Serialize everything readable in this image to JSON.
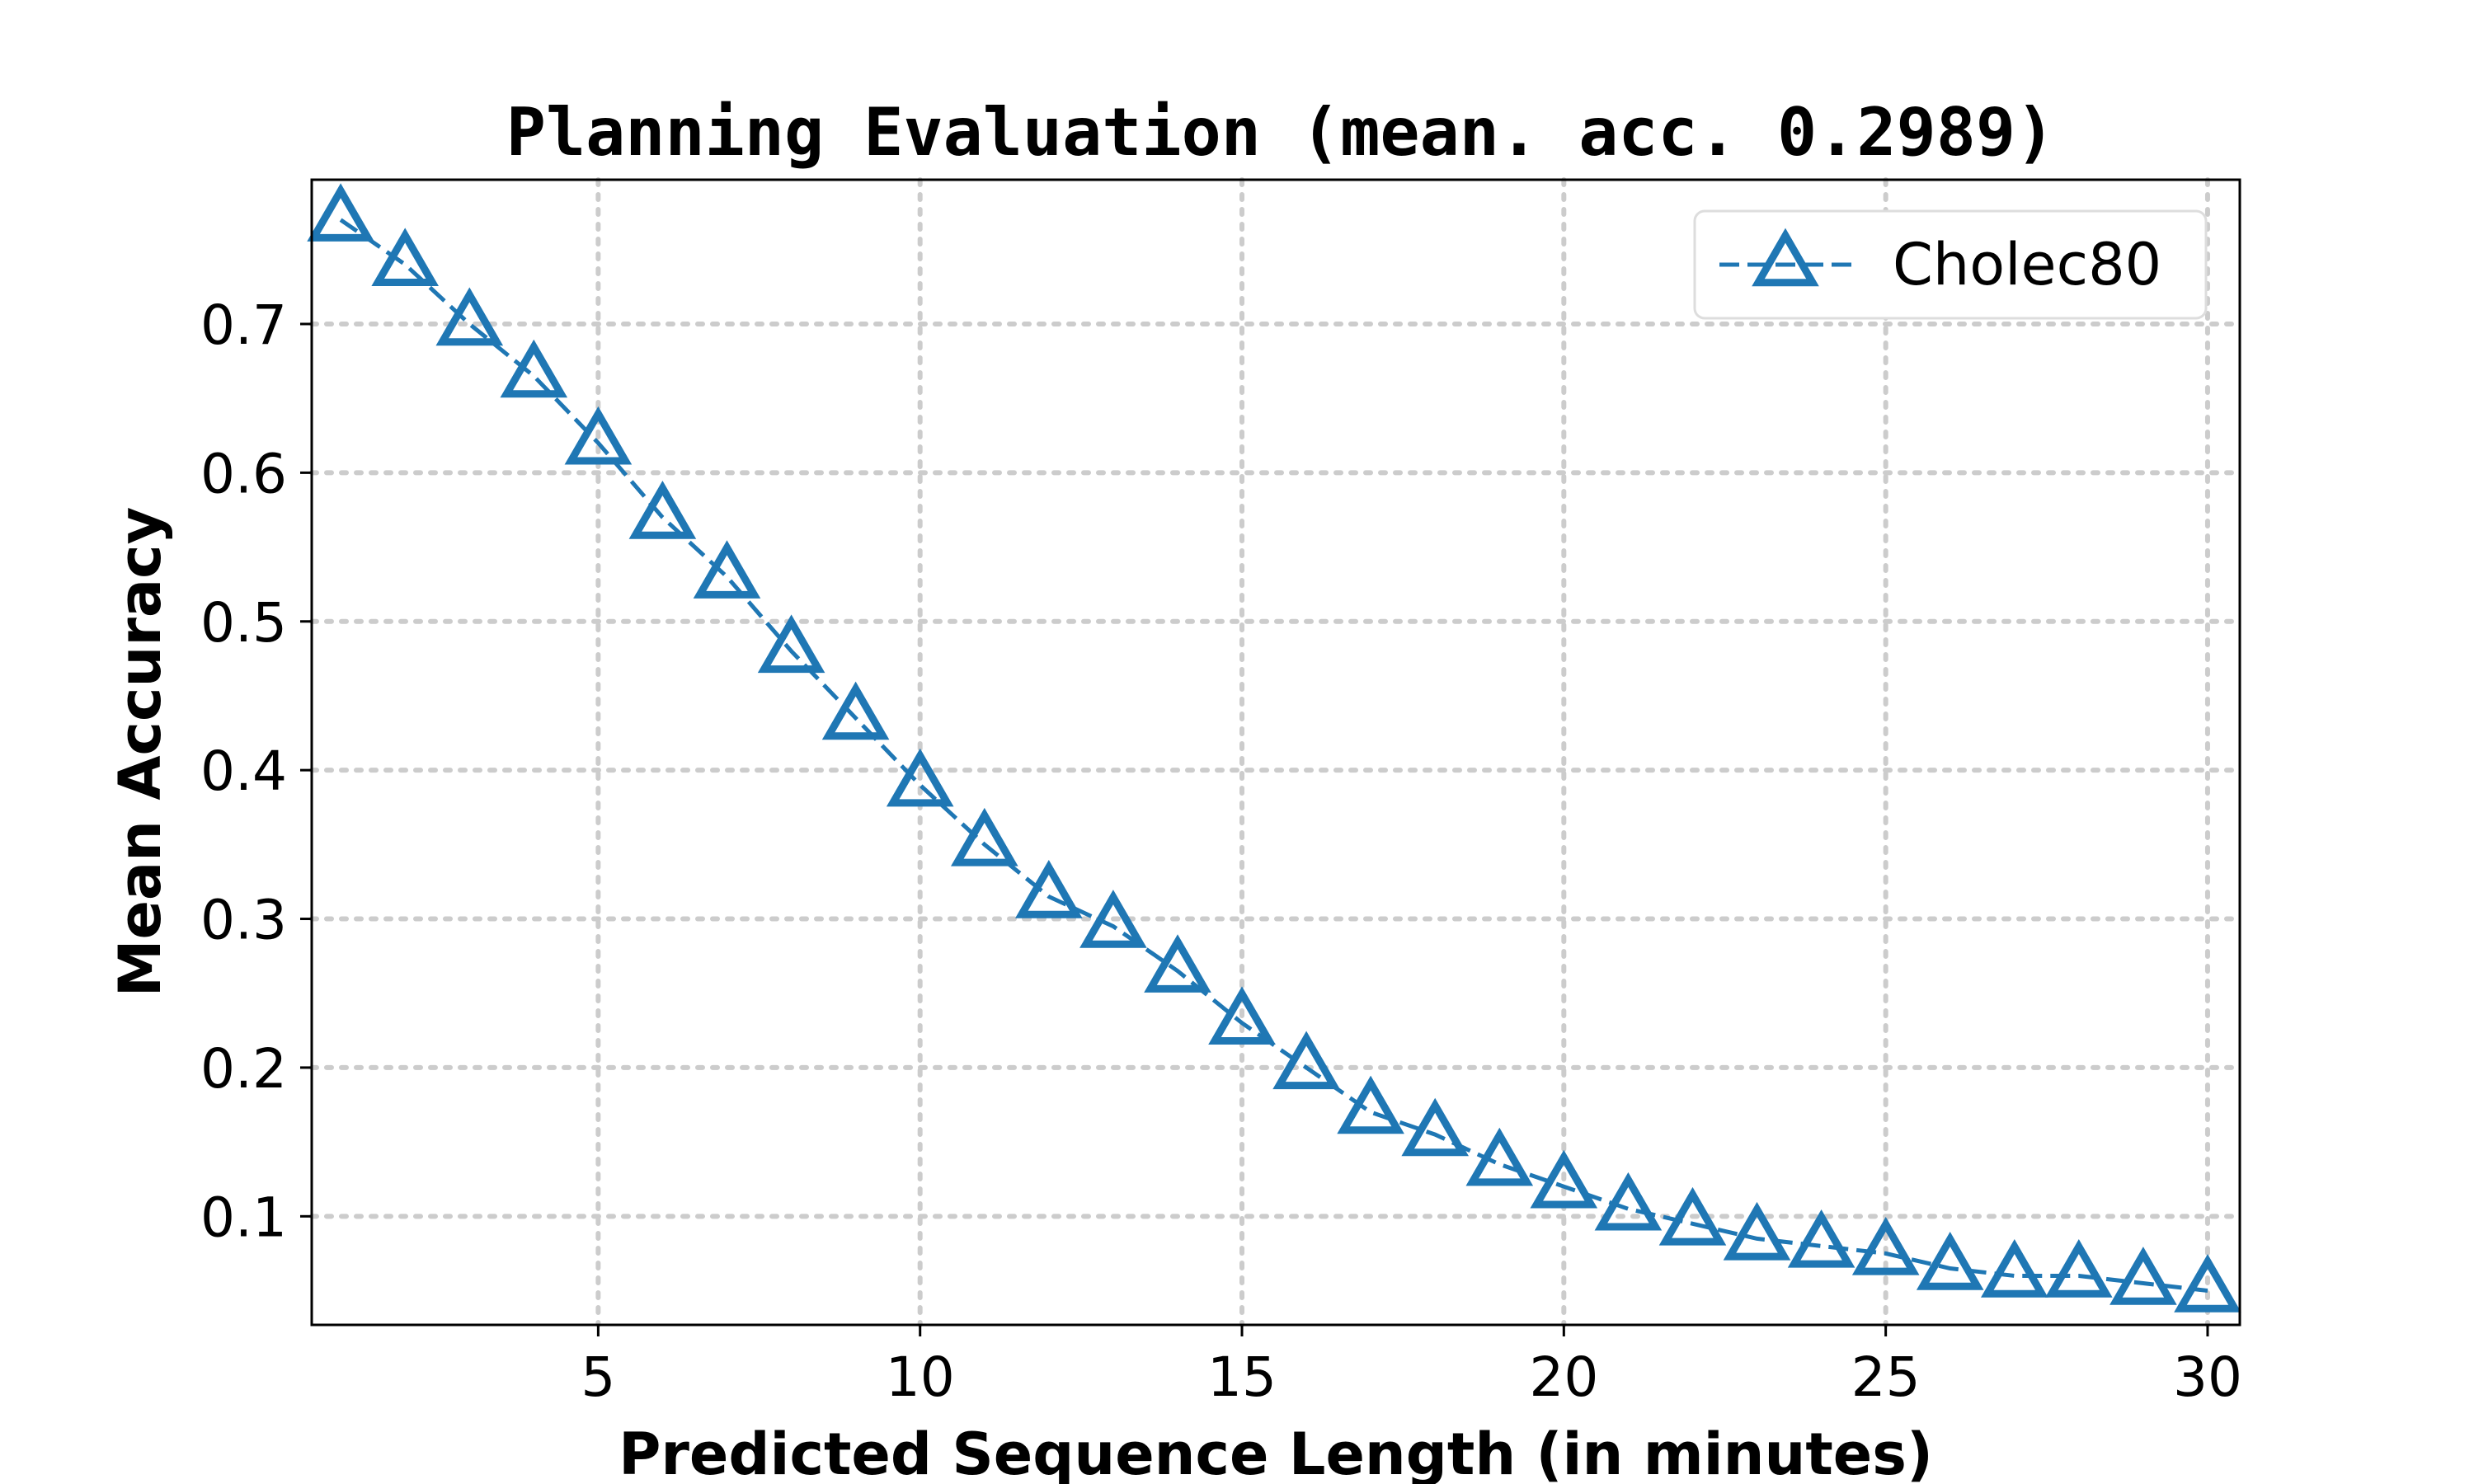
{
  "chart_data": {
    "type": "line",
    "title": "Planning Evaluation (mean. acc. 0.2989)",
    "xlabel": "Predicted Sequence Length (in minutes)",
    "ylabel": "Mean Accuracy",
    "xlim": [
      0.55,
      30.5
    ],
    "ylim": [
      0.027,
      0.797
    ],
    "xticks": [
      5,
      10,
      15,
      20,
      25,
      30
    ],
    "xtick_labels": [
      "5",
      "10",
      "15",
      "20",
      "25",
      "30"
    ],
    "yticks": [
      0.1,
      0.2,
      0.3,
      0.4,
      0.5,
      0.6,
      0.7
    ],
    "ytick_labels": [
      "0.1",
      "0.2",
      "0.3",
      "0.4",
      "0.5",
      "0.6",
      "0.7"
    ],
    "grid": true,
    "legend_position": "top-right",
    "x": [
      1,
      2,
      3,
      4,
      5,
      6,
      7,
      8,
      9,
      10,
      11,
      12,
      13,
      14,
      15,
      16,
      17,
      18,
      19,
      20,
      21,
      22,
      23,
      24,
      25,
      26,
      27,
      28,
      29,
      30
    ],
    "series": [
      {
        "name": "Cholec80",
        "color": "#1f77b4",
        "marker": "triangle-up",
        "linestyle": "dashed",
        "values": [
          0.77,
          0.74,
          0.7,
          0.665,
          0.62,
          0.57,
          0.53,
          0.48,
          0.435,
          0.39,
          0.35,
          0.315,
          0.295,
          0.265,
          0.23,
          0.2,
          0.17,
          0.155,
          0.135,
          0.12,
          0.105,
          0.095,
          0.085,
          0.08,
          0.075,
          0.065,
          0.06,
          0.06,
          0.055,
          0.05
        ]
      }
    ]
  }
}
